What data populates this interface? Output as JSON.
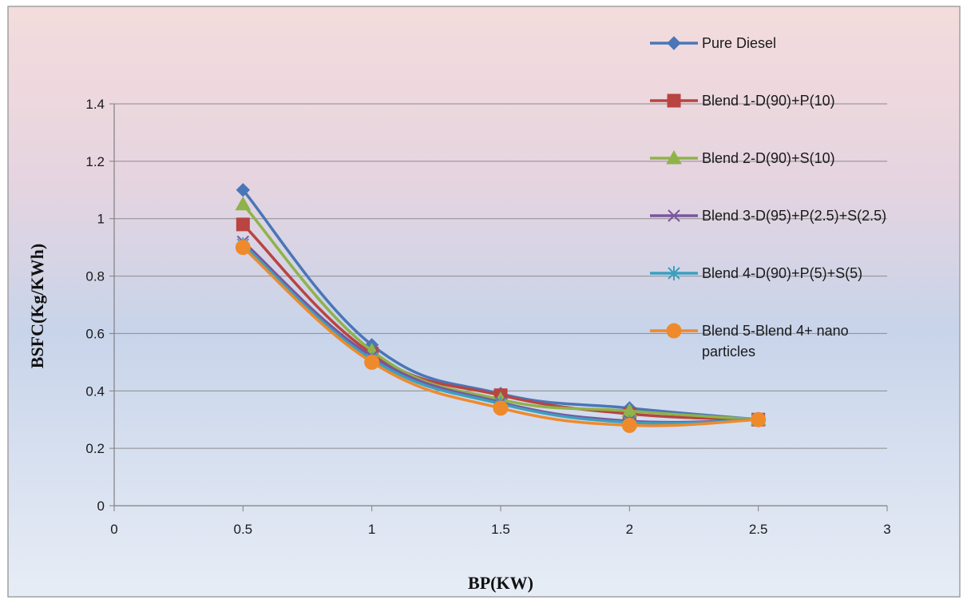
{
  "chart_data": {
    "type": "line",
    "title": "",
    "xlabel": "BP(KW)",
    "ylabel": "BSFC(Kg/KWh)",
    "xlim": [
      0,
      3
    ],
    "ylim": [
      0,
      1.4
    ],
    "xticks": [
      "0",
      "0.5",
      "1",
      "1.5",
      "2",
      "2.5",
      "3"
    ],
    "yticks": [
      "0",
      "0.2",
      "0.4",
      "0.6",
      "0.8",
      "1",
      "1.2",
      "1.4"
    ],
    "grid": "horizontal",
    "legend_position": "right",
    "series": [
      {
        "name": "Pure Diesel",
        "legend_lines": [
          "Pure Diesel"
        ],
        "color": "#4a76b8",
        "marker": "diamond",
        "x": [
          0.5,
          1,
          1.5,
          2,
          2.5
        ],
        "y": [
          1.1,
          0.56,
          0.39,
          0.34,
          0.3
        ]
      },
      {
        "name": "Blend 1-D(90)+P(10)",
        "legend_lines": [
          "Blend 1-D(90)+P(10)"
        ],
        "color": "#b94441",
        "marker": "square",
        "x": [
          0.5,
          1,
          1.5,
          2,
          2.5
        ],
        "y": [
          0.98,
          0.53,
          0.385,
          0.32,
          0.3
        ]
      },
      {
        "name": "Blend 2-D(90)+S(10)",
        "legend_lines": [
          "Blend 2-D(90)+S(10)"
        ],
        "color": "#8fb24a",
        "marker": "triangle",
        "x": [
          0.5,
          1,
          1.5,
          2,
          2.5
        ],
        "y": [
          1.05,
          0.54,
          0.37,
          0.33,
          0.3
        ]
      },
      {
        "name": "Blend 3-D(95)+P(2.5)+S(2.5)",
        "legend_lines": [
          "Blend 3-D(95)+P(2.5)+S(2.5)"
        ],
        "color": "#7a569d",
        "marker": "x",
        "x": [
          0.5,
          1,
          1.5,
          2,
          2.5
        ],
        "y": [
          0.92,
          0.52,
          0.36,
          0.295,
          0.3
        ]
      },
      {
        "name": "Blend 4-D(90)+P(5)+S(5)",
        "legend_lines": [
          "Blend 4-D(90)+P(5)+S(5)"
        ],
        "color": "#3c9fbf",
        "marker": "star",
        "x": [
          0.5,
          1,
          1.5,
          2,
          2.5
        ],
        "y": [
          0.91,
          0.51,
          0.355,
          0.29,
          0.3
        ]
      },
      {
        "name": "Blend 5-Blend 4+ nano particles",
        "legend_lines": [
          "Blend 5-Blend 4+ nano",
          "particles"
        ],
        "color": "#ef8a2c",
        "marker": "circle",
        "x": [
          0.5,
          1,
          1.5,
          2,
          2.5
        ],
        "y": [
          0.9,
          0.5,
          0.34,
          0.28,
          0.3
        ]
      }
    ]
  }
}
